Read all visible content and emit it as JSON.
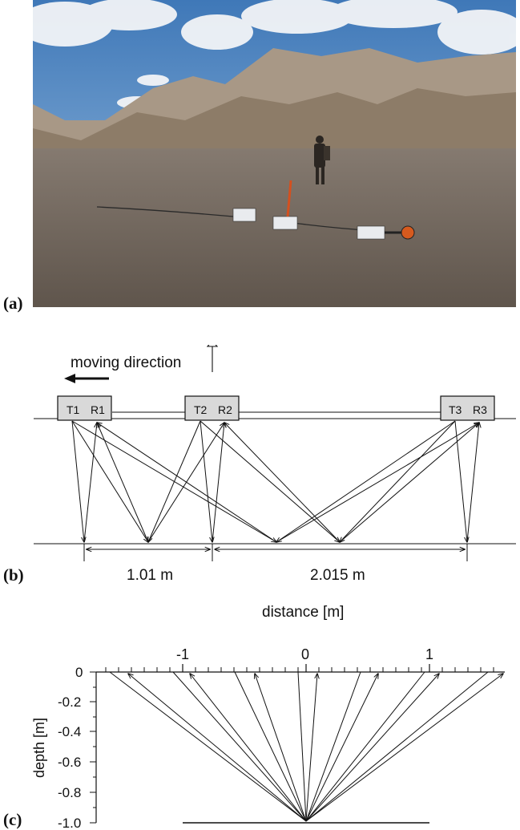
{
  "panel_labels": {
    "a": "(a)",
    "b": "(b)",
    "c": "(c)"
  },
  "photo": {
    "subject": "desert field survey with antenna array on gravel plain",
    "colors": {
      "sky_top": "#3f78b8",
      "sky_bottom": "#8fb6dc",
      "cloud": "#f3f5f8",
      "mountain_far": "#a99a86",
      "mountain_near": "#8c7a66",
      "ground_top": "#7b7066",
      "ground_bottom": "#655a50"
    }
  },
  "fig_b": {
    "direction_label": "moving direction",
    "units": [
      {
        "t": "T1",
        "r": "R1"
      },
      {
        "t": "T2",
        "r": "R2"
      },
      {
        "t": "T3",
        "r": "R3"
      }
    ],
    "dimension_1": "1.01 m",
    "dimension_2": "2.015 m"
  },
  "fig_c": {
    "xlabel": "distance [m]",
    "ylabel": "depth [m]",
    "x_ticks": [
      "-1",
      "0",
      "1"
    ],
    "y_ticks": [
      "0",
      "-0.2",
      "-0.4",
      "-0.6",
      "-0.8",
      "-1.0"
    ]
  }
}
